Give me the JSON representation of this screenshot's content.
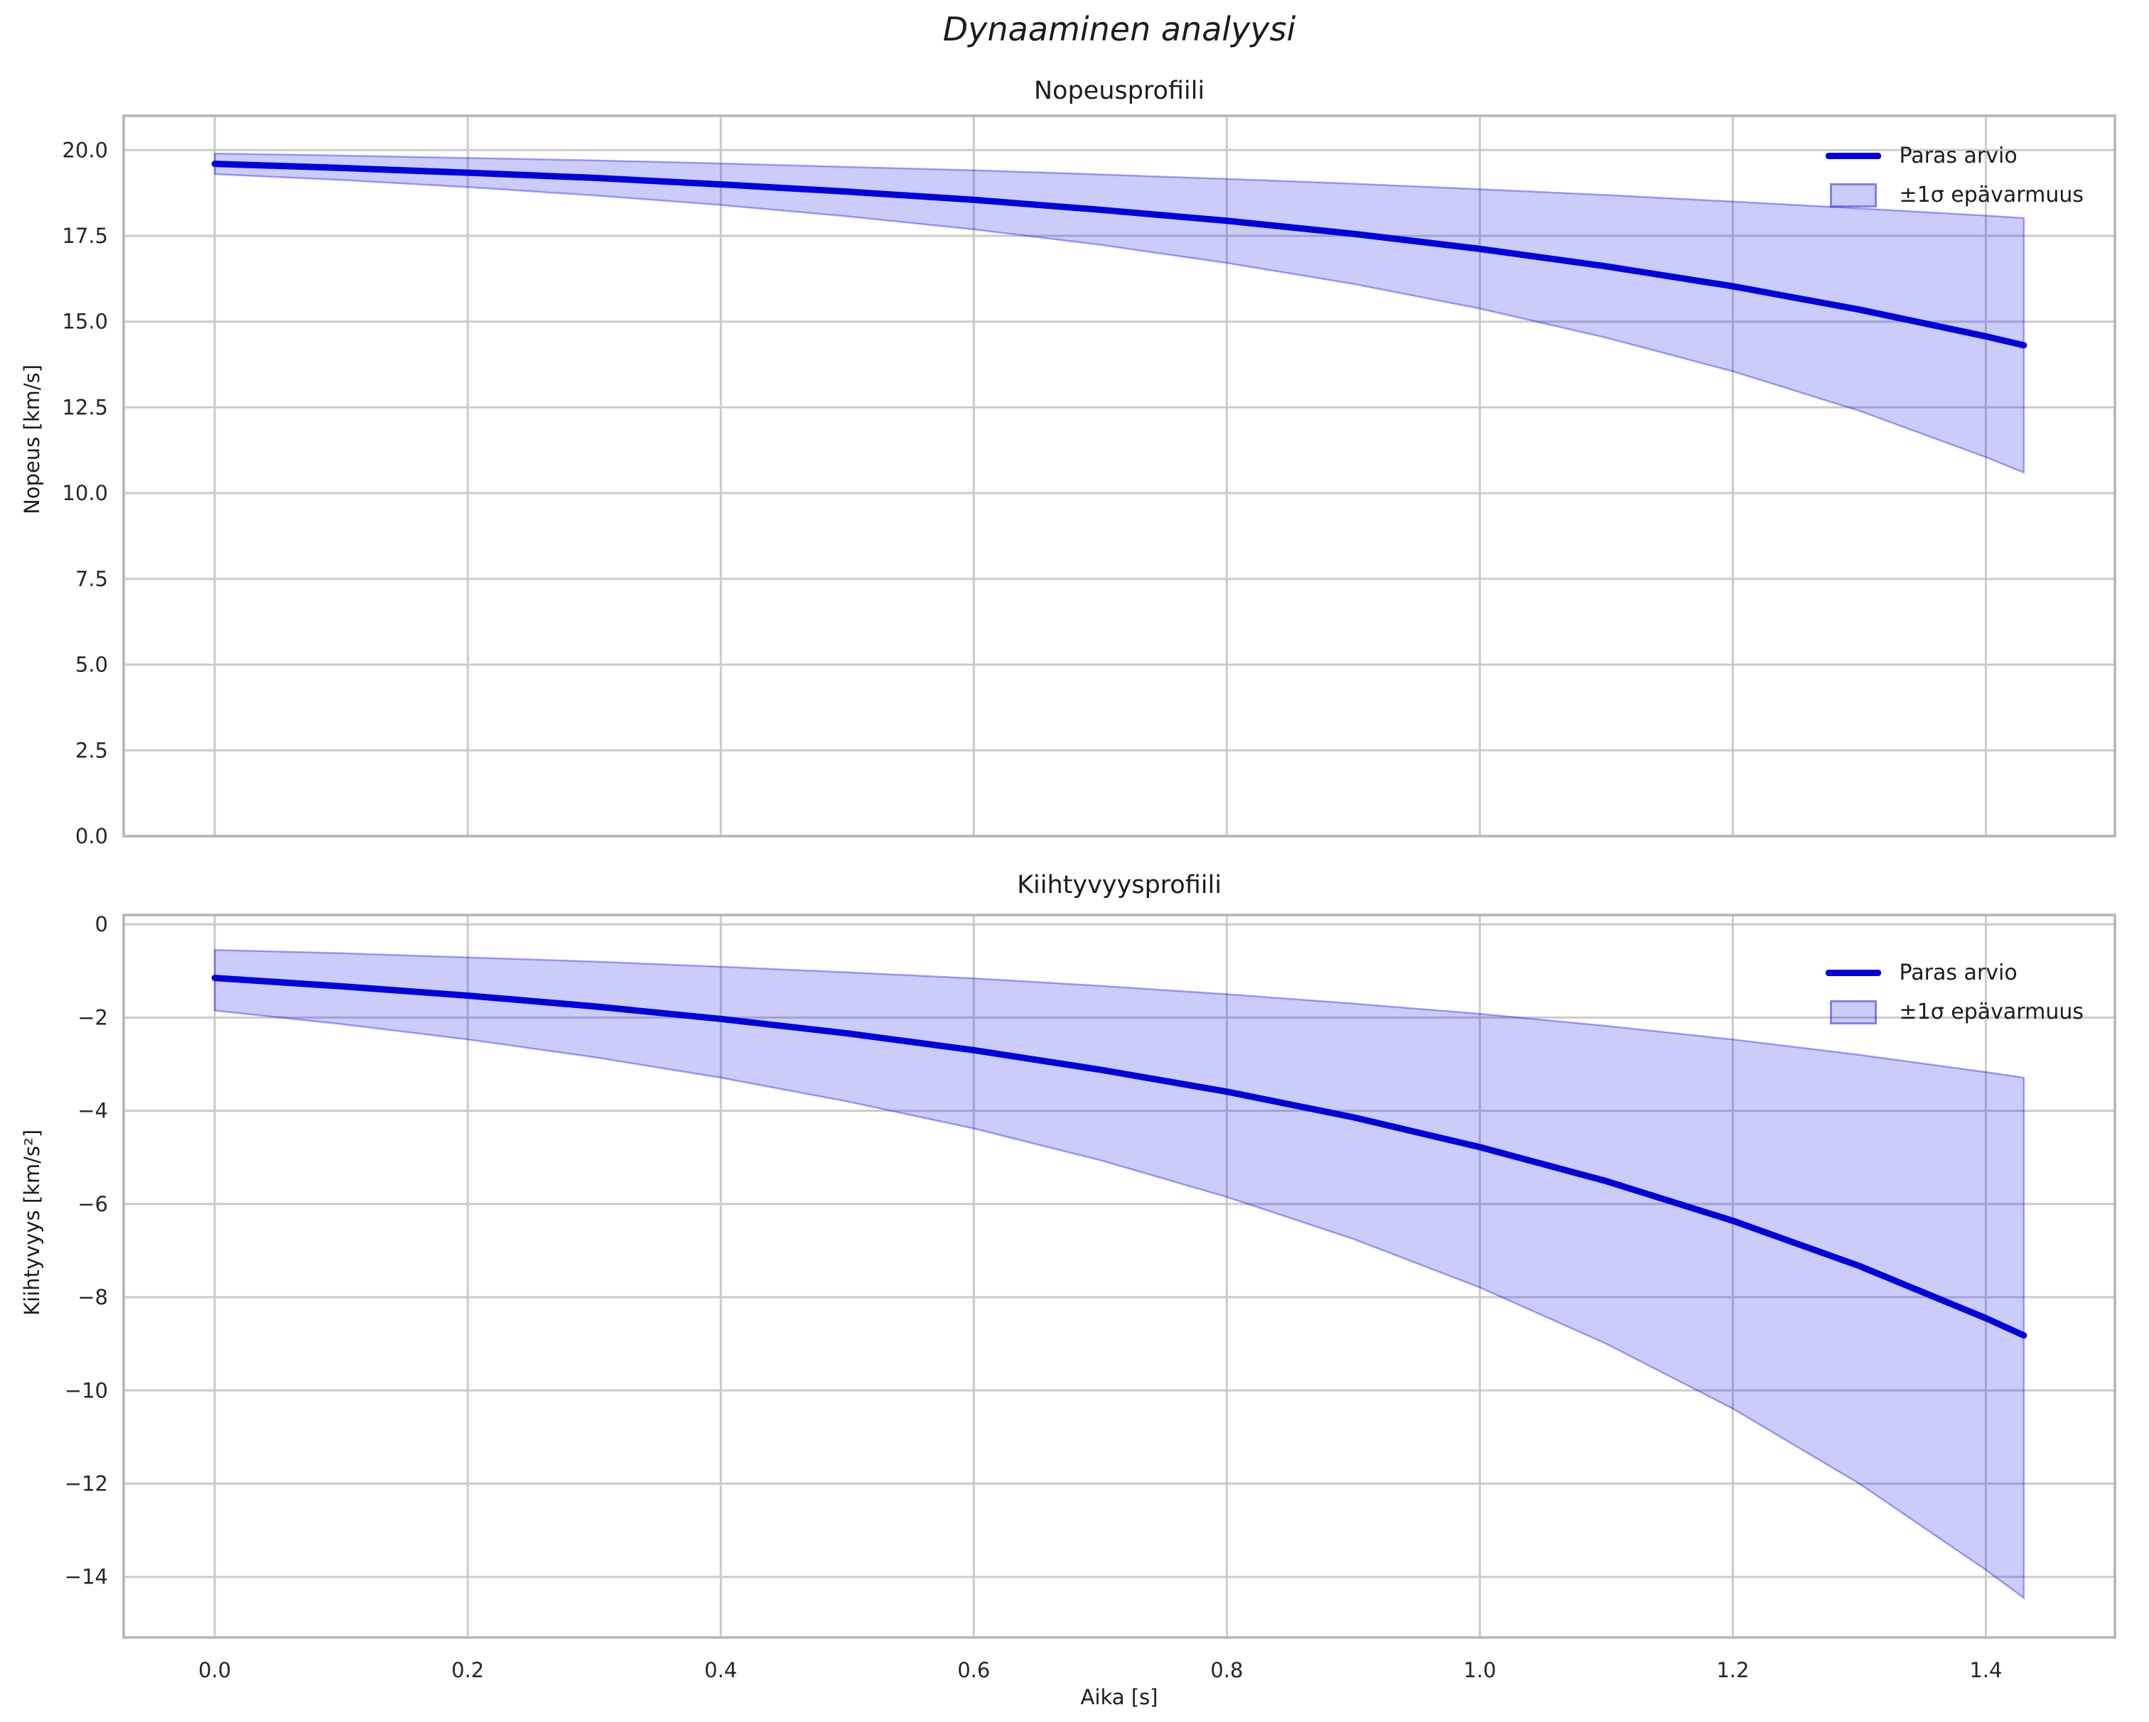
{
  "figure": {
    "title": "Dynaaminen analyysi",
    "colors": {
      "background": "#ffffff",
      "line": "#0000dd",
      "band": "#0000e6",
      "grid": "#cbcbcb",
      "spine": "#b4b4b4",
      "text": "#1c1c1c",
      "tick_text": "#262626"
    }
  },
  "chart_data": [
    {
      "type": "line",
      "title": "Nopeusprofiili",
      "ylabel": "Nopeus [km/s]",
      "xlabel": "",
      "x": [
        0,
        0.1,
        0.2,
        0.3,
        0.4,
        0.5,
        0.6,
        0.7,
        0.8,
        0.9,
        1.0,
        1.1,
        1.2,
        1.3,
        1.4,
        1.43
      ],
      "series": [
        {
          "name": "Paras arvio",
          "values": [
            19.6,
            19.48,
            19.34,
            19.19,
            19.0,
            18.79,
            18.55,
            18.26,
            17.94,
            17.56,
            17.12,
            16.61,
            16.03,
            15.35,
            14.57,
            14.31
          ]
        }
      ],
      "band": {
        "name": "±1σ epävarmuus",
        "upper": [
          19.9,
          19.84,
          19.77,
          19.7,
          19.61,
          19.51,
          19.41,
          19.29,
          19.16,
          19.02,
          18.86,
          18.69,
          18.5,
          18.3,
          18.09,
          18.02
        ],
        "lower": [
          19.3,
          19.13,
          18.92,
          18.68,
          18.4,
          18.07,
          17.69,
          17.24,
          16.71,
          16.1,
          15.38,
          14.53,
          13.55,
          12.4,
          11.05,
          10.6
        ]
      },
      "xlim": [
        -0.072,
        1.502
      ],
      "ylim": [
        0,
        21.0
      ],
      "xticks": [
        0,
        0.2,
        0.4,
        0.6,
        0.8,
        1.0,
        1.2,
        1.4
      ],
      "xtick_labels": [
        "0.0",
        "0.2",
        "0.4",
        "0.6",
        "0.8",
        "1.0",
        "1.2",
        "1.4"
      ],
      "show_xtick_labels": false,
      "yticks": [
        0,
        2.5,
        5,
        7.5,
        10,
        12.5,
        15,
        17.5,
        20
      ],
      "ytick_labels": [
        "0.0",
        "2.5",
        "5.0",
        "7.5",
        "10.0",
        "12.5",
        "15.0",
        "17.5",
        "20.0"
      ],
      "grid": true,
      "legend": {
        "position": "upper right",
        "entries": [
          {
            "label": "Paras arvio",
            "type": "line"
          },
          {
            "label": "±1σ epävarmuus",
            "type": "band"
          }
        ]
      }
    },
    {
      "type": "line",
      "title": "Kiihtyvyysprofiili",
      "ylabel": "Kiihtyvyys [km/s²]",
      "xlabel": "Aika [s]",
      "x": [
        0,
        0.1,
        0.2,
        0.3,
        0.4,
        0.5,
        0.6,
        0.7,
        0.8,
        0.9,
        1.0,
        1.1,
        1.2,
        1.3,
        1.4,
        1.43
      ],
      "series": [
        {
          "name": "Paras arvio",
          "values": [
            -1.15,
            -1.33,
            -1.53,
            -1.76,
            -2.03,
            -2.34,
            -2.7,
            -3.12,
            -3.59,
            -4.14,
            -4.78,
            -5.51,
            -6.36,
            -7.33,
            -8.45,
            -8.82
          ]
        }
      ],
      "band": {
        "name": "±1σ epävarmuus",
        "upper": [
          -0.55,
          -0.62,
          -0.71,
          -0.8,
          -0.91,
          -1.03,
          -1.16,
          -1.32,
          -1.5,
          -1.7,
          -1.92,
          -2.18,
          -2.47,
          -2.8,
          -3.17,
          -3.29
        ],
        "lower": [
          -1.85,
          -2.14,
          -2.47,
          -2.85,
          -3.29,
          -3.8,
          -4.38,
          -5.06,
          -5.85,
          -6.75,
          -7.79,
          -9.0,
          -10.39,
          -12.0,
          -13.85,
          -14.45
        ]
      },
      "xlim": [
        -0.072,
        1.502
      ],
      "ylim": [
        -15.3,
        0.2
      ],
      "xticks": [
        0,
        0.2,
        0.4,
        0.6,
        0.8,
        1.0,
        1.2,
        1.4
      ],
      "xtick_labels": [
        "0.0",
        "0.2",
        "0.4",
        "0.6",
        "0.8",
        "1.0",
        "1.2",
        "1.4"
      ],
      "show_xtick_labels": true,
      "yticks": [
        0,
        -2,
        -4,
        -6,
        -8,
        -10,
        -12,
        -14
      ],
      "ytick_labels": [
        "0",
        "−2",
        "−4",
        "−6",
        "−8",
        "−10",
        "−12",
        "−14"
      ],
      "grid": true,
      "legend": {
        "position": "upper right",
        "entries": [
          {
            "label": "Paras arvio",
            "type": "line"
          },
          {
            "label": "±1σ epävarmuus",
            "type": "band"
          }
        ]
      }
    }
  ]
}
